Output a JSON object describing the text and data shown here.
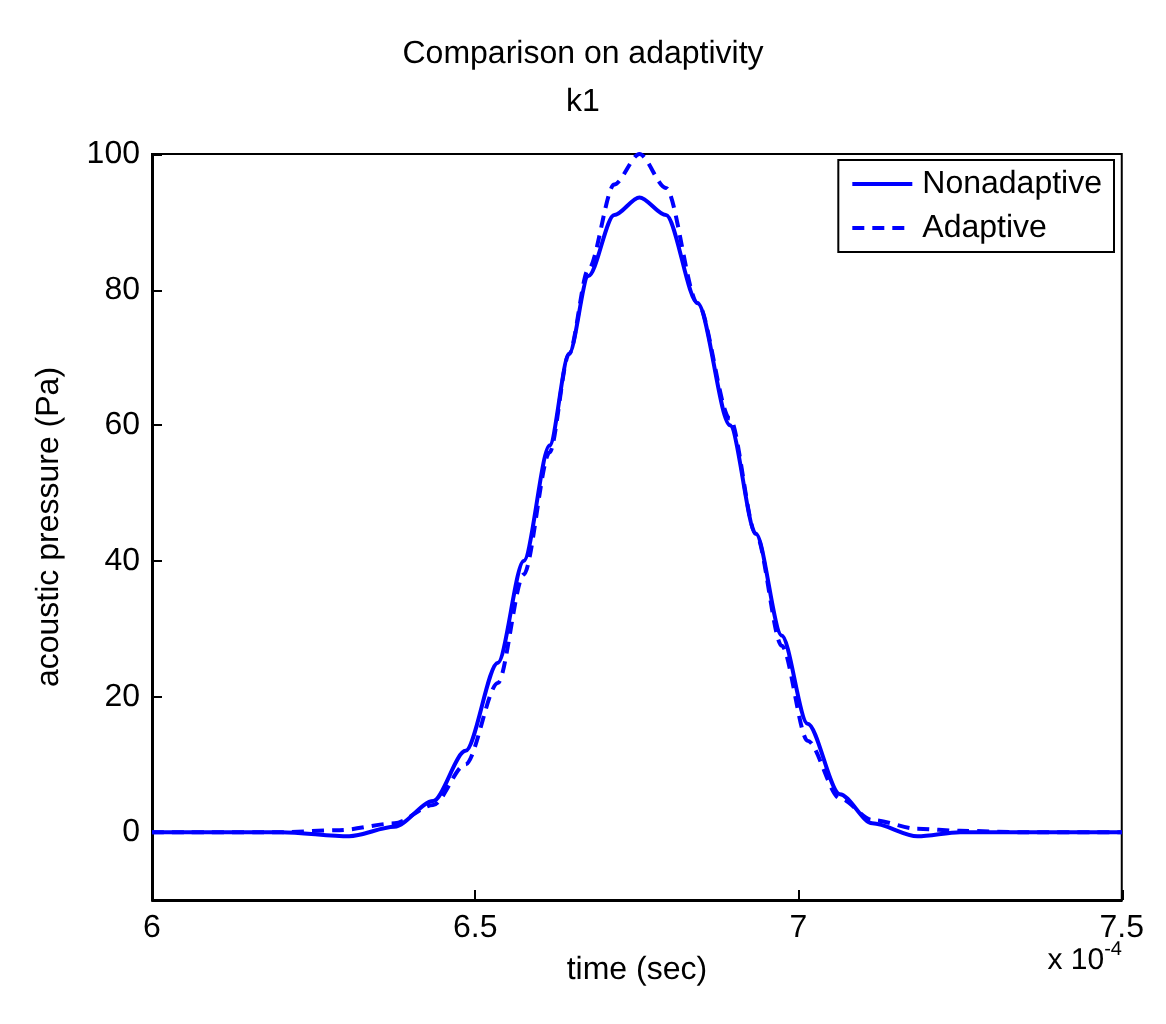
{
  "chart_data": {
    "type": "line",
    "title": "Comparison on adaptivity",
    "subtitle": "k1",
    "xlabel": "time (sec)",
    "ylabel": "acoustic pressure (Pa)",
    "annotations": [
      "x 10$^{-4}$"
    ],
    "xlim": [
      6,
      7.5
    ],
    "xticks": [
      6,
      6.5,
      7,
      7.5
    ],
    "ylim": [
      -10,
      100
    ],
    "yticks": [
      0,
      20,
      40,
      60,
      80,
      100
    ],
    "grid": false,
    "legend": "top right",
    "series": [
      {
        "name": "Nonadaptive",
        "color": "#0000ff",
        "line_style": "solid",
        "x": [
          6,
          6.2,
          6.305,
          6.375,
          6.435,
          6.485,
          6.535,
          6.575,
          6.615,
          6.645,
          6.675,
          6.715,
          6.754,
          6.795,
          6.844,
          6.894,
          6.934,
          6.974,
          7.014,
          7.064,
          7.114,
          7.184,
          7.25,
          7.35,
          7.5
        ],
        "values": [
          0,
          0,
          -0.6,
          0.8,
          4.6,
          12,
          25,
          40,
          57,
          70.5,
          82,
          91,
          93.6,
          91,
          78,
          60,
          44,
          29,
          16,
          5.6,
          1.3,
          -0.6,
          0,
          0,
          0
        ]
      },
      {
        "name": "Adaptive",
        "color": "#0000ff",
        "line_style": "dashed",
        "x": [
          6,
          6.2,
          6.29,
          6.375,
          6.435,
          6.485,
          6.535,
          6.575,
          6.615,
          6.645,
          6.675,
          6.715,
          6.754,
          6.795,
          6.844,
          6.894,
          6.934,
          6.974,
          7.014,
          7.064,
          7.114,
          7.184,
          7.25,
          7.35,
          7.5
        ],
        "values": [
          0,
          0,
          0.3,
          1.3,
          4,
          10,
          22,
          38,
          56,
          70.5,
          83,
          95.5,
          100,
          95,
          78,
          61,
          44,
          27.5,
          13.5,
          5,
          1.8,
          0.5,
          0.2,
          0,
          0
        ]
      }
    ]
  }
}
